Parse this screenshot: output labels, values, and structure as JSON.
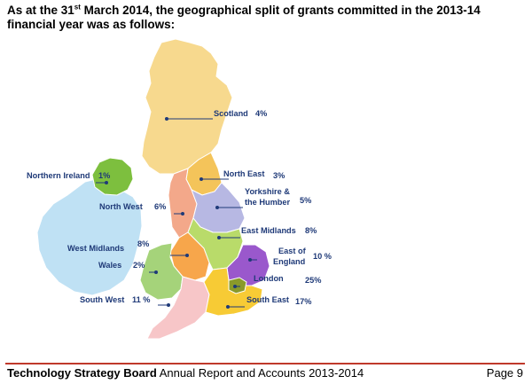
{
  "heading": {
    "pre": "As at the 31",
    "sup": "st",
    "post": " March 2014, the geographical split of grants committed in the 2013-14 financial year was as follows:"
  },
  "regions": [
    {
      "key": "scotland",
      "name": "Scotland",
      "pct": "4%",
      "color": "#f7d98e"
    },
    {
      "key": "north-east",
      "name": "North East",
      "pct": "3%",
      "color": "#f4c45a"
    },
    {
      "key": "northern-ireland",
      "name": "Northern Ireland",
      "pct": "1%",
      "color": "#7dbf3e"
    },
    {
      "key": "yorkshire",
      "name_line1": "Yorkshire &",
      "name_line2": "the Humber",
      "pct": "5%",
      "color": "#b7b8e3"
    },
    {
      "key": "north-west",
      "name": "North West",
      "pct": "6%",
      "color": "#f3a88a"
    },
    {
      "key": "east-midlands",
      "name": "East Midlands",
      "pct": "8%",
      "color": "#b9db6a"
    },
    {
      "key": "west-midlands",
      "name": "West Midlands",
      "pct": "8%",
      "color": "#f7a64b"
    },
    {
      "key": "east-england",
      "name_line1": "East of",
      "name_line2": "England",
      "pct": "10 %",
      "color": "#9a58cc"
    },
    {
      "key": "wales",
      "name": "Wales",
      "pct": "2%",
      "color": "#a5d37a"
    },
    {
      "key": "london",
      "name": "London",
      "pct": "25%",
      "color": "#8a9a2a"
    },
    {
      "key": "south-west",
      "name": "South West",
      "pct": "11 %",
      "color": "#f7c6c8"
    },
    {
      "key": "south-east",
      "name": "South East",
      "pct": "17%",
      "color": "#f7cb35"
    }
  ],
  "ireland_color": "#bfe1f4",
  "footer": {
    "org": "Technology Strategy Board",
    "report": " Annual Report and Accounts 2013-2014",
    "page": "Page 9"
  }
}
